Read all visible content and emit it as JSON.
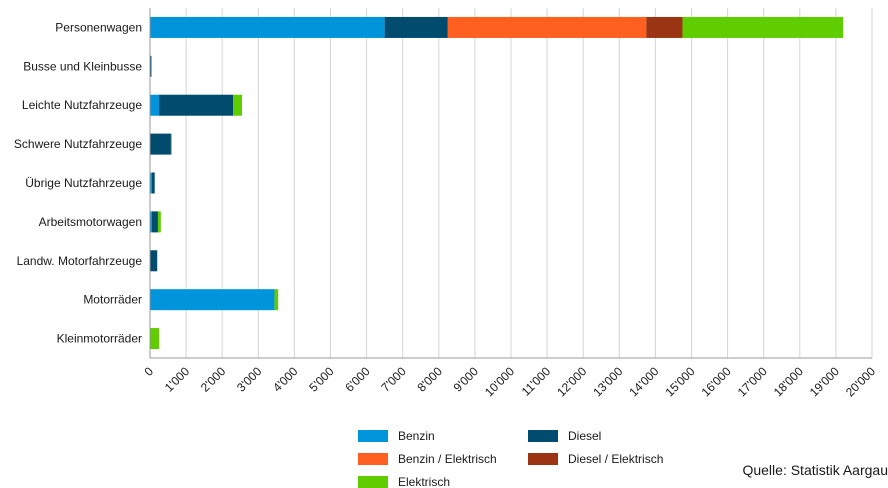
{
  "chart_data": {
    "type": "bar",
    "orientation": "horizontal",
    "stacked": true,
    "categories": [
      "Personenwagen",
      "Busse und Kleinbusse",
      "Leichte Nutzfahrzeuge",
      "Schwere Nutzfahrzeuge",
      "Übrige Nutzfahrzeuge",
      "Arbeitsmotorwagen",
      "Landw. Motorfahrzeuge",
      "Motorräder",
      "Kleinmotorräder"
    ],
    "series": [
      {
        "name": "Benzin",
        "color": "#0095db",
        "values": [
          6500,
          0,
          250,
          0,
          50,
          50,
          0,
          3450,
          0
        ]
      },
      {
        "name": "Diesel",
        "color": "#004b6e",
        "values": [
          1750,
          40,
          2050,
          580,
          80,
          170,
          200,
          0,
          0
        ]
      },
      {
        "name": "Benzin / Elektrisch",
        "color": "#ff5f1f",
        "values": [
          5500,
          0,
          0,
          0,
          0,
          0,
          0,
          0,
          0
        ]
      },
      {
        "name": "Diesel / Elektrisch",
        "color": "#9b3413",
        "values": [
          1000,
          0,
          0,
          0,
          0,
          0,
          0,
          0,
          0
        ]
      },
      {
        "name": "Elektrisch",
        "color": "#5fcd00",
        "values": [
          4450,
          0,
          250,
          20,
          0,
          80,
          0,
          100,
          250
        ]
      }
    ],
    "xlim": [
      0,
      20000
    ],
    "xticks": [
      "0",
      "1'000",
      "2'000",
      "3'000",
      "4'000",
      "5'000",
      "6'000",
      "7'000",
      "8'000",
      "9'000",
      "10'000",
      "11'000",
      "12'000",
      "13'000",
      "14'000",
      "15'000",
      "16'000",
      "17'000",
      "18'000",
      "19'000",
      "20'000"
    ],
    "grid": "vertical",
    "legend": "bottom"
  },
  "source_text": "Quelle: Statistik Aargau"
}
